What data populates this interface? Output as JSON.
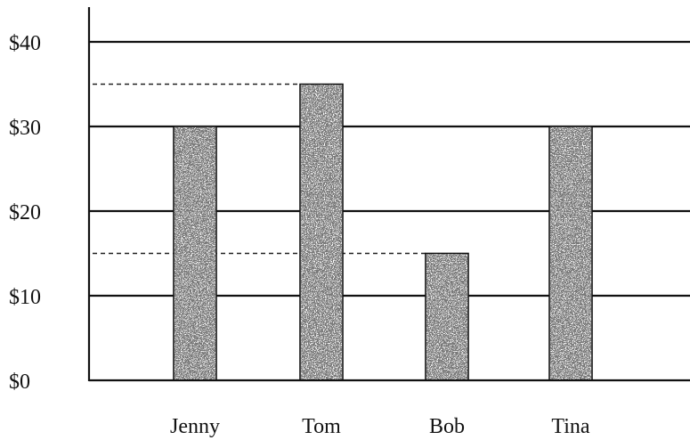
{
  "chart_data": {
    "type": "bar",
    "title": "",
    "xlabel": "",
    "ylabel": "",
    "categories": [
      "Jenny",
      "Tom",
      "Bob",
      "Tina"
    ],
    "values": [
      30,
      35,
      15,
      30
    ],
    "ylim": [
      0,
      40
    ],
    "yticks": [
      0,
      10,
      20,
      30,
      40
    ],
    "ytick_labels": [
      "$0",
      "$10",
      "$20",
      "$30",
      "$40"
    ],
    "reference_lines": [
      35,
      15
    ],
    "grid": true,
    "legend": "none",
    "colors": {
      "ink": "#111111",
      "background": "#ffffff"
    }
  }
}
